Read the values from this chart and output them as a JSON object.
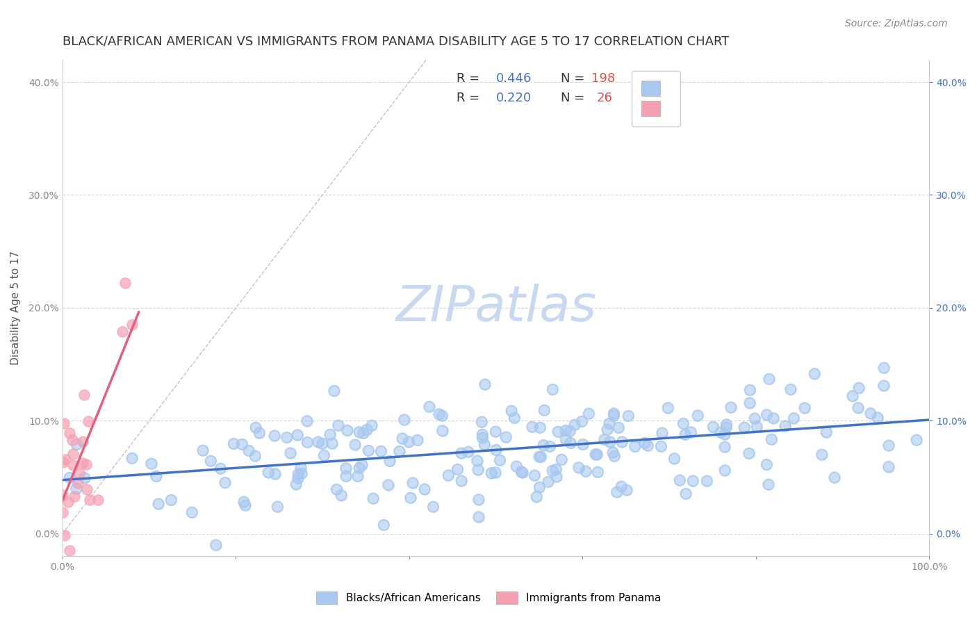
{
  "title": "BLACK/AFRICAN AMERICAN VS IMMIGRANTS FROM PANAMA DISABILITY AGE 5 TO 17 CORRELATION CHART",
  "source": "Source: ZipAtlas.com",
  "ylabel": "Disability Age 5 to 17",
  "xlabel": "",
  "xlim": [
    0.0,
    1.0
  ],
  "ylim": [
    -0.02,
    0.42
  ],
  "yticks": [
    0.0,
    0.1,
    0.2,
    0.3,
    0.4
  ],
  "ytick_labels": [
    "0.0%",
    "10.0%",
    "20.0%",
    "30.0%",
    "40.0%"
  ],
  "xticks": [
    0.0,
    0.2,
    0.4,
    0.6,
    0.8,
    1.0
  ],
  "xtick_labels": [
    "0.0%",
    "",
    "",
    "",
    "",
    "100.0%"
  ],
  "blue_R": 0.446,
  "blue_N": 198,
  "pink_R": 0.22,
  "pink_N": 26,
  "blue_color": "#a8c8f0",
  "pink_color": "#f4a0b0",
  "blue_line_color": "#4472c4",
  "pink_line_color": "#e06080",
  "diagonal_color": "#c0a0a0",
  "legend_R_color": "#4472c4",
  "legend_N_color": "#e05050",
  "watermark_color": "#c8d8f0",
  "background_color": "#ffffff",
  "title_fontsize": 13,
  "source_fontsize": 10,
  "legend_fontsize": 13,
  "axis_fontsize": 11,
  "tick_fontsize": 10
}
